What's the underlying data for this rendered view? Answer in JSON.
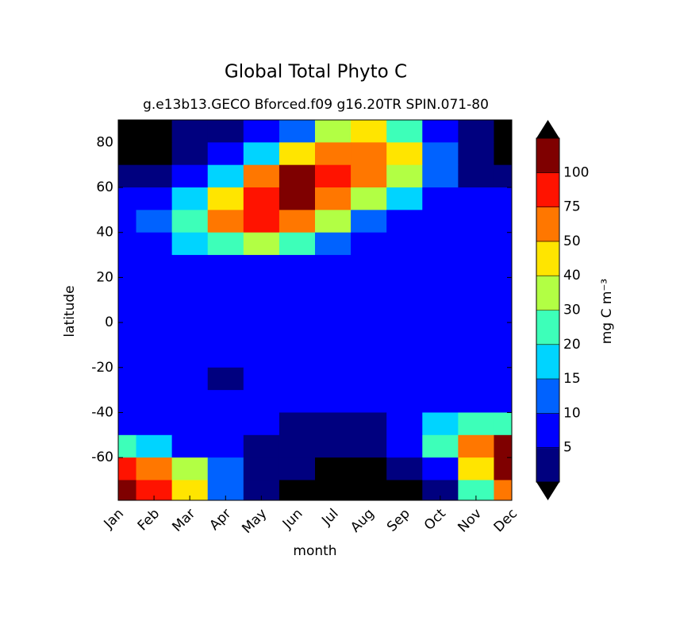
{
  "chart_data": {
    "type": "contourf",
    "title": "Global Total Phyto C",
    "subtitle": "g.e13b13.GECO Bforced.f09 g16.20TR SPIN.071-80",
    "xlabel": "month",
    "ylabel": "latitude",
    "colorbar_label": "mg C m⁻³",
    "categories": [
      "Jan",
      "Feb",
      "Mar",
      "Apr",
      "May",
      "Jun",
      "Jul",
      "Aug",
      "Sep",
      "Oct",
      "Nov",
      "Dec"
    ],
    "y": [
      85,
      75,
      65,
      55,
      45,
      35,
      25,
      15,
      5,
      -5,
      -15,
      -25,
      -35,
      -45,
      -55,
      -65,
      -75
    ],
    "ylim": [
      -79,
      90
    ],
    "yticks": [
      -60,
      -40,
      -20,
      0,
      20,
      40,
      60,
      80
    ],
    "levels": [
      5,
      10,
      15,
      20,
      30,
      40,
      50,
      75,
      100
    ],
    "colors": [
      "#00007f",
      "#0000ff",
      "#0062ff",
      "#00d4ff",
      "#3dffb9",
      "#b2ff44",
      "#ffe500",
      "#ff7700",
      "#ff1300",
      "#7f0000"
    ],
    "under_color": "#000000",
    "over_color": "#000000",
    "z": [
      [
        0,
        0,
        3,
        3,
        5,
        12,
        30,
        45,
        20,
        5,
        3,
        0
      ],
      [
        0,
        0,
        3,
        5,
        15,
        40,
        60,
        60,
        40,
        10,
        3,
        0
      ],
      [
        3,
        3,
        5,
        15,
        60,
        110,
        80,
        60,
        30,
        10,
        3,
        3
      ],
      [
        5,
        8,
        15,
        40,
        90,
        110,
        60,
        30,
        15,
        7,
        5,
        5
      ],
      [
        7,
        12,
        25,
        50,
        75,
        60,
        30,
        12,
        7,
        6,
        6,
        6
      ],
      [
        6,
        8,
        15,
        25,
        30,
        20,
        10,
        7,
        6,
        6,
        6,
        6
      ],
      [
        6,
        6,
        6,
        6,
        6,
        6,
        6,
        6,
        6,
        6,
        6,
        6
      ],
      [
        6,
        6,
        6,
        6,
        6,
        6,
        6,
        6,
        6,
        6,
        6,
        6
      ],
      [
        6,
        6,
        6,
        6,
        6,
        6,
        6,
        6,
        6,
        6,
        6,
        6
      ],
      [
        6,
        6,
        6,
        6,
        6,
        6,
        6,
        8,
        8,
        6,
        6,
        6
      ],
      [
        6,
        6,
        6,
        6,
        6,
        6,
        6,
        6,
        6,
        6,
        6,
        6
      ],
      [
        6,
        6,
        6,
        3,
        6,
        6,
        6,
        6,
        6,
        6,
        6,
        6
      ],
      [
        6,
        6,
        6,
        6,
        6,
        6,
        6,
        6,
        7,
        7,
        6,
        6
      ],
      [
        6,
        6,
        6,
        6,
        6,
        3,
        3,
        3,
        8,
        15,
        20,
        25
      ],
      [
        25,
        15,
        8,
        6,
        3,
        3,
        3,
        3,
        5,
        20,
        60,
        110
      ],
      [
        75,
        60,
        30,
        10,
        3,
        3,
        0,
        0,
        3,
        8,
        40,
        110
      ],
      [
        110,
        75,
        40,
        10,
        3,
        0,
        0,
        0,
        0,
        3,
        20,
        60
      ]
    ]
  }
}
